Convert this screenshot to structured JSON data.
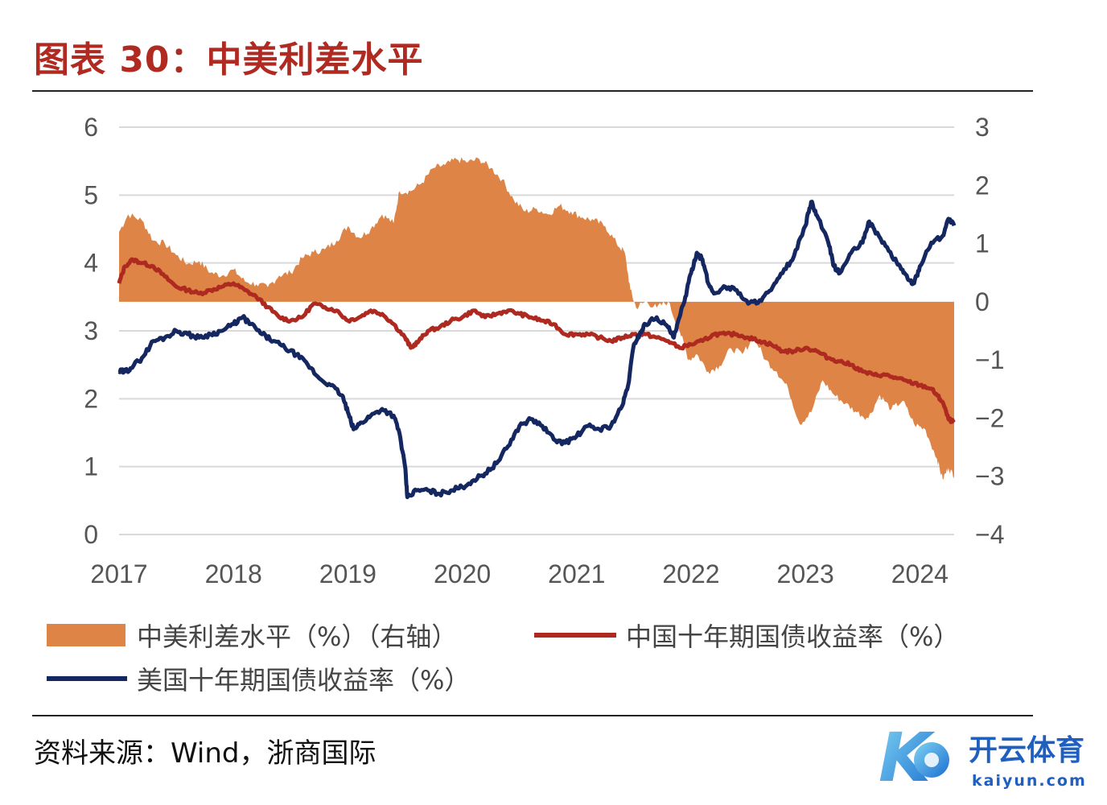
{
  "header": {
    "title": "图表 30：中美利差水平"
  },
  "footer": {
    "source": "资料来源：Wind，浙商国际"
  },
  "watermark": {
    "brand_cn": "开云体育",
    "brand_en": "kaiyun.com",
    "logo_letter": "K"
  },
  "colors": {
    "spread": "#dd8446",
    "china": "#ae2a20",
    "us": "#142760",
    "title": "#b02a22",
    "grid": "#d9d9d9"
  },
  "chart_data": {
    "type": "line+area",
    "title": "中美利差水平",
    "x_ticks": [
      "2017",
      "2018",
      "2019",
      "2020",
      "2021",
      "2022",
      "2023",
      "2024"
    ],
    "x_range": [
      2017.0,
      2024.3
    ],
    "left_axis": {
      "ticks": [
        "0",
        "1",
        "2",
        "3",
        "4",
        "5",
        "6"
      ],
      "range": [
        0,
        6
      ]
    },
    "right_axis": {
      "ticks": [
        "−4",
        "−3",
        "−2",
        "−1",
        "0",
        "1",
        "2",
        "3"
      ],
      "range": [
        -4,
        3
      ]
    },
    "grid": true,
    "legend_position": "bottom",
    "series": [
      {
        "name": "中美利差水平（%）（右轴）",
        "type": "area",
        "axis": "right",
        "points": [
          [
            2017.0,
            1.2
          ],
          [
            2017.08,
            1.5
          ],
          [
            2017.2,
            1.4
          ],
          [
            2017.3,
            1.05
          ],
          [
            2017.4,
            1.0
          ],
          [
            2017.5,
            0.8
          ],
          [
            2017.6,
            0.65
          ],
          [
            2017.7,
            0.7
          ],
          [
            2017.8,
            0.5
          ],
          [
            2017.9,
            0.45
          ],
          [
            2018.0,
            0.55
          ],
          [
            2018.1,
            0.35
          ],
          [
            2018.2,
            0.3
          ],
          [
            2018.3,
            0.25
          ],
          [
            2018.4,
            0.45
          ],
          [
            2018.5,
            0.5
          ],
          [
            2018.6,
            0.75
          ],
          [
            2018.7,
            0.85
          ],
          [
            2018.8,
            0.9
          ],
          [
            2018.9,
            1.05
          ],
          [
            2019.0,
            1.3
          ],
          [
            2019.1,
            1.1
          ],
          [
            2019.2,
            1.25
          ],
          [
            2019.3,
            1.5
          ],
          [
            2019.4,
            1.35
          ],
          [
            2019.45,
            1.9
          ],
          [
            2019.55,
            1.9
          ],
          [
            2019.65,
            2.05
          ],
          [
            2019.75,
            2.3
          ],
          [
            2019.85,
            2.35
          ],
          [
            2019.95,
            2.45
          ],
          [
            2020.05,
            2.4
          ],
          [
            2020.15,
            2.45
          ],
          [
            2020.25,
            2.3
          ],
          [
            2020.35,
            2.1
          ],
          [
            2020.45,
            1.75
          ],
          [
            2020.55,
            1.55
          ],
          [
            2020.65,
            1.6
          ],
          [
            2020.75,
            1.5
          ],
          [
            2020.85,
            1.65
          ],
          [
            2020.95,
            1.55
          ],
          [
            2021.05,
            1.45
          ],
          [
            2021.15,
            1.4
          ],
          [
            2021.25,
            1.3
          ],
          [
            2021.35,
            1.0
          ],
          [
            2021.42,
            0.85
          ],
          [
            2021.47,
            0.2
          ],
          [
            2021.52,
            -0.1
          ],
          [
            2021.6,
            0.0
          ],
          [
            2021.7,
            -0.1
          ],
          [
            2021.8,
            0.0
          ],
          [
            2021.9,
            -0.5
          ],
          [
            2021.98,
            -1.0
          ],
          [
            2022.05,
            -0.9
          ],
          [
            2022.15,
            -1.2
          ],
          [
            2022.25,
            -1.1
          ],
          [
            2022.35,
            -0.8
          ],
          [
            2022.45,
            -0.9
          ],
          [
            2022.55,
            -0.6
          ],
          [
            2022.65,
            -1.0
          ],
          [
            2022.75,
            -1.2
          ],
          [
            2022.85,
            -1.5
          ],
          [
            2022.95,
            -2.1
          ],
          [
            2023.05,
            -1.9
          ],
          [
            2023.15,
            -1.35
          ],
          [
            2023.25,
            -1.6
          ],
          [
            2023.35,
            -1.75
          ],
          [
            2023.45,
            -1.9
          ],
          [
            2023.55,
            -2.0
          ],
          [
            2023.65,
            -1.6
          ],
          [
            2023.75,
            -1.85
          ],
          [
            2023.85,
            -1.7
          ],
          [
            2023.95,
            -2.1
          ],
          [
            2024.05,
            -2.2
          ],
          [
            2024.15,
            -2.7
          ],
          [
            2024.2,
            -3.05
          ],
          [
            2024.25,
            -2.85
          ],
          [
            2024.3,
            -3.0
          ]
        ]
      },
      {
        "name": "中国十年期国债收益率（%）",
        "type": "line",
        "axis": "left",
        "points": [
          [
            2017.0,
            3.7
          ],
          [
            2017.05,
            3.95
          ],
          [
            2017.12,
            4.05
          ],
          [
            2017.2,
            4.0
          ],
          [
            2017.3,
            3.95
          ],
          [
            2017.4,
            3.8
          ],
          [
            2017.5,
            3.65
          ],
          [
            2017.6,
            3.6
          ],
          [
            2017.7,
            3.55
          ],
          [
            2017.8,
            3.6
          ],
          [
            2017.9,
            3.65
          ],
          [
            2018.0,
            3.7
          ],
          [
            2018.1,
            3.6
          ],
          [
            2018.2,
            3.5
          ],
          [
            2018.3,
            3.35
          ],
          [
            2018.4,
            3.2
          ],
          [
            2018.5,
            3.15
          ],
          [
            2018.6,
            3.2
          ],
          [
            2018.7,
            3.4
          ],
          [
            2018.8,
            3.35
          ],
          [
            2018.9,
            3.3
          ],
          [
            2019.0,
            3.15
          ],
          [
            2019.1,
            3.2
          ],
          [
            2019.2,
            3.3
          ],
          [
            2019.3,
            3.25
          ],
          [
            2019.4,
            3.1
          ],
          [
            2019.5,
            2.9
          ],
          [
            2019.55,
            2.75
          ],
          [
            2019.62,
            2.85
          ],
          [
            2019.7,
            3.0
          ],
          [
            2019.8,
            3.05
          ],
          [
            2019.9,
            3.15
          ],
          [
            2020.0,
            3.2
          ],
          [
            2020.1,
            3.3
          ],
          [
            2020.2,
            3.2
          ],
          [
            2020.3,
            3.25
          ],
          [
            2020.4,
            3.3
          ],
          [
            2020.5,
            3.25
          ],
          [
            2020.6,
            3.2
          ],
          [
            2020.7,
            3.15
          ],
          [
            2020.8,
            3.1
          ],
          [
            2020.9,
            2.95
          ],
          [
            2021.0,
            2.95
          ],
          [
            2021.1,
            2.95
          ],
          [
            2021.2,
            2.9
          ],
          [
            2021.3,
            2.85
          ],
          [
            2021.4,
            2.9
          ],
          [
            2021.5,
            2.95
          ],
          [
            2021.6,
            2.95
          ],
          [
            2021.7,
            2.9
          ],
          [
            2021.8,
            2.85
          ],
          [
            2021.9,
            2.75
          ],
          [
            2022.0,
            2.8
          ],
          [
            2022.1,
            2.85
          ],
          [
            2022.2,
            2.95
          ],
          [
            2022.3,
            2.95
          ],
          [
            2022.4,
            2.95
          ],
          [
            2022.5,
            2.9
          ],
          [
            2022.6,
            2.85
          ],
          [
            2022.7,
            2.8
          ],
          [
            2022.8,
            2.7
          ],
          [
            2022.9,
            2.7
          ],
          [
            2023.0,
            2.75
          ],
          [
            2023.1,
            2.7
          ],
          [
            2023.2,
            2.6
          ],
          [
            2023.3,
            2.55
          ],
          [
            2023.4,
            2.5
          ],
          [
            2023.5,
            2.4
          ],
          [
            2023.6,
            2.35
          ],
          [
            2023.7,
            2.35
          ],
          [
            2023.8,
            2.3
          ],
          [
            2023.9,
            2.25
          ],
          [
            2024.0,
            2.2
          ],
          [
            2024.1,
            2.15
          ],
          [
            2024.15,
            2.05
          ],
          [
            2024.2,
            1.95
          ],
          [
            2024.25,
            1.7
          ],
          [
            2024.3,
            1.65
          ]
        ]
      },
      {
        "name": "美国十年期国债收益率（%）",
        "type": "line",
        "axis": "left",
        "points": [
          [
            2017.0,
            2.4
          ],
          [
            2017.05,
            2.4
          ],
          [
            2017.1,
            2.45
          ],
          [
            2017.2,
            2.6
          ],
          [
            2017.3,
            2.85
          ],
          [
            2017.4,
            2.9
          ],
          [
            2017.5,
            3.0
          ],
          [
            2017.6,
            2.95
          ],
          [
            2017.7,
            2.9
          ],
          [
            2017.8,
            2.95
          ],
          [
            2017.9,
            3.0
          ],
          [
            2018.0,
            3.1
          ],
          [
            2018.08,
            3.2
          ],
          [
            2018.15,
            3.1
          ],
          [
            2018.25,
            2.95
          ],
          [
            2018.35,
            2.85
          ],
          [
            2018.45,
            2.75
          ],
          [
            2018.55,
            2.65
          ],
          [
            2018.65,
            2.5
          ],
          [
            2018.75,
            2.3
          ],
          [
            2018.85,
            2.2
          ],
          [
            2018.95,
            2.05
          ],
          [
            2019.0,
            1.8
          ],
          [
            2019.05,
            1.55
          ],
          [
            2019.12,
            1.65
          ],
          [
            2019.2,
            1.75
          ],
          [
            2019.3,
            1.85
          ],
          [
            2019.4,
            1.75
          ],
          [
            2019.45,
            1.5
          ],
          [
            2019.5,
            1.0
          ],
          [
            2019.52,
            0.55
          ],
          [
            2019.6,
            0.65
          ],
          [
            2019.7,
            0.65
          ],
          [
            2019.8,
            0.6
          ],
          [
            2019.9,
            0.65
          ],
          [
            2020.0,
            0.7
          ],
          [
            2020.1,
            0.8
          ],
          [
            2020.2,
            0.9
          ],
          [
            2020.3,
            1.05
          ],
          [
            2020.4,
            1.3
          ],
          [
            2020.5,
            1.6
          ],
          [
            2020.6,
            1.7
          ],
          [
            2020.7,
            1.6
          ],
          [
            2020.8,
            1.4
          ],
          [
            2020.9,
            1.35
          ],
          [
            2021.0,
            1.45
          ],
          [
            2021.1,
            1.6
          ],
          [
            2021.2,
            1.55
          ],
          [
            2021.3,
            1.6
          ],
          [
            2021.4,
            1.9
          ],
          [
            2021.45,
            2.2
          ],
          [
            2021.5,
            2.8
          ],
          [
            2021.55,
            2.95
          ],
          [
            2021.6,
            3.1
          ],
          [
            2021.7,
            3.2
          ],
          [
            2021.8,
            3.05
          ],
          [
            2021.85,
            2.9
          ],
          [
            2021.9,
            3.2
          ],
          [
            2021.95,
            3.5
          ],
          [
            2022.0,
            3.85
          ],
          [
            2022.05,
            4.15
          ],
          [
            2022.1,
            4.05
          ],
          [
            2022.15,
            3.7
          ],
          [
            2022.2,
            3.55
          ],
          [
            2022.3,
            3.65
          ],
          [
            2022.4,
            3.6
          ],
          [
            2022.5,
            3.4
          ],
          [
            2022.6,
            3.45
          ],
          [
            2022.7,
            3.6
          ],
          [
            2022.8,
            3.85
          ],
          [
            2022.9,
            4.1
          ],
          [
            2023.0,
            4.55
          ],
          [
            2023.05,
            4.9
          ],
          [
            2023.1,
            4.7
          ],
          [
            2023.2,
            4.3
          ],
          [
            2023.25,
            3.95
          ],
          [
            2023.3,
            3.85
          ],
          [
            2023.4,
            4.15
          ],
          [
            2023.5,
            4.3
          ],
          [
            2023.55,
            4.6
          ],
          [
            2023.6,
            4.5
          ],
          [
            2023.7,
            4.25
          ],
          [
            2023.8,
            4.0
          ],
          [
            2023.85,
            3.9
          ],
          [
            2023.9,
            3.75
          ],
          [
            2023.95,
            3.7
          ],
          [
            2024.0,
            3.95
          ],
          [
            2024.1,
            4.3
          ],
          [
            2024.2,
            4.4
          ],
          [
            2024.25,
            4.65
          ],
          [
            2024.3,
            4.55
          ]
        ]
      }
    ]
  }
}
